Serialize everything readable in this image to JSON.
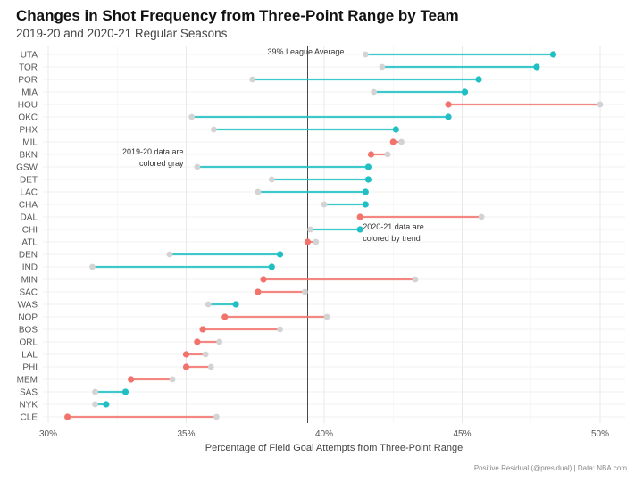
{
  "chart_data": {
    "type": "dumbbell",
    "title": "Changes in Shot Frequency from Three-Point Range by Team",
    "subtitle": "2019-20 and 2020-21 Regular Seasons",
    "xlabel": "Percentage of Field Goal Attempts from Three-Point Range",
    "ylabel": "",
    "xlim": [
      30,
      50
    ],
    "x_ticks": [
      "30%",
      "35%",
      "40%",
      "45%",
      "50%"
    ],
    "x_tick_values": [
      30,
      35,
      40,
      45,
      50
    ],
    "grid": true,
    "reference_line": {
      "value": 39.4,
      "label": "39% League Average"
    },
    "annotations": [
      {
        "text": [
          "2019-20  data are",
          "colored gray"
        ],
        "x": 35,
        "team": "GSW"
      },
      {
        "text": [
          "2020-21  data are",
          "colored by trend"
        ],
        "x": 41.4,
        "team": "ATL"
      }
    ],
    "colors": {
      "increase": "#1fbfc3",
      "decrease": "#f2736c",
      "prior": "#d3d3d3"
    },
    "teams": [
      {
        "team": "UTA",
        "v2019": 41.5,
        "v2021": 48.3
      },
      {
        "team": "TOR",
        "v2019": 42.1,
        "v2021": 47.7
      },
      {
        "team": "POR",
        "v2019": 37.4,
        "v2021": 45.6
      },
      {
        "team": "MIA",
        "v2019": 41.8,
        "v2021": 45.1
      },
      {
        "team": "HOU",
        "v2019": 50.0,
        "v2021": 44.5
      },
      {
        "team": "OKC",
        "v2019": 35.2,
        "v2021": 44.5
      },
      {
        "team": "PHX",
        "v2019": 36.0,
        "v2021": 42.6
      },
      {
        "team": "MIL",
        "v2019": 42.8,
        "v2021": 42.5
      },
      {
        "team": "BKN",
        "v2019": 42.3,
        "v2021": 41.7
      },
      {
        "team": "GSW",
        "v2019": 35.4,
        "v2021": 41.6
      },
      {
        "team": "DET",
        "v2019": 38.1,
        "v2021": 41.6
      },
      {
        "team": "LAC",
        "v2019": 37.6,
        "v2021": 41.5
      },
      {
        "team": "CHA",
        "v2019": 40.0,
        "v2021": 41.5
      },
      {
        "team": "DAL",
        "v2019": 45.7,
        "v2021": 41.3
      },
      {
        "team": "CHI",
        "v2019": 39.5,
        "v2021": 41.3
      },
      {
        "team": "ATL",
        "v2019": 39.7,
        "v2021": 39.4
      },
      {
        "team": "DEN",
        "v2019": 34.4,
        "v2021": 38.4
      },
      {
        "team": "IND",
        "v2019": 31.6,
        "v2021": 38.1
      },
      {
        "team": "MIN",
        "v2019": 43.3,
        "v2021": 37.8
      },
      {
        "team": "SAC",
        "v2019": 39.3,
        "v2021": 37.6
      },
      {
        "team": "WAS",
        "v2019": 35.8,
        "v2021": 36.8
      },
      {
        "team": "NOP",
        "v2019": 40.1,
        "v2021": 36.4
      },
      {
        "team": "BOS",
        "v2019": 38.4,
        "v2021": 35.6
      },
      {
        "team": "ORL",
        "v2019": 36.2,
        "v2021": 35.4
      },
      {
        "team": "LAL",
        "v2019": 35.7,
        "v2021": 35.0
      },
      {
        "team": "PHI",
        "v2019": 35.9,
        "v2021": 35.0
      },
      {
        "team": "MEM",
        "v2019": 34.5,
        "v2021": 33.0
      },
      {
        "team": "SAS",
        "v2019": 31.7,
        "v2021": 32.8
      },
      {
        "team": "NYK",
        "v2019": 31.7,
        "v2021": 32.1
      },
      {
        "team": "CLE",
        "v2019": 36.1,
        "v2021": 30.7
      }
    ],
    "caption": "Positive Residual (@presidual) | Data: NBA.com"
  }
}
